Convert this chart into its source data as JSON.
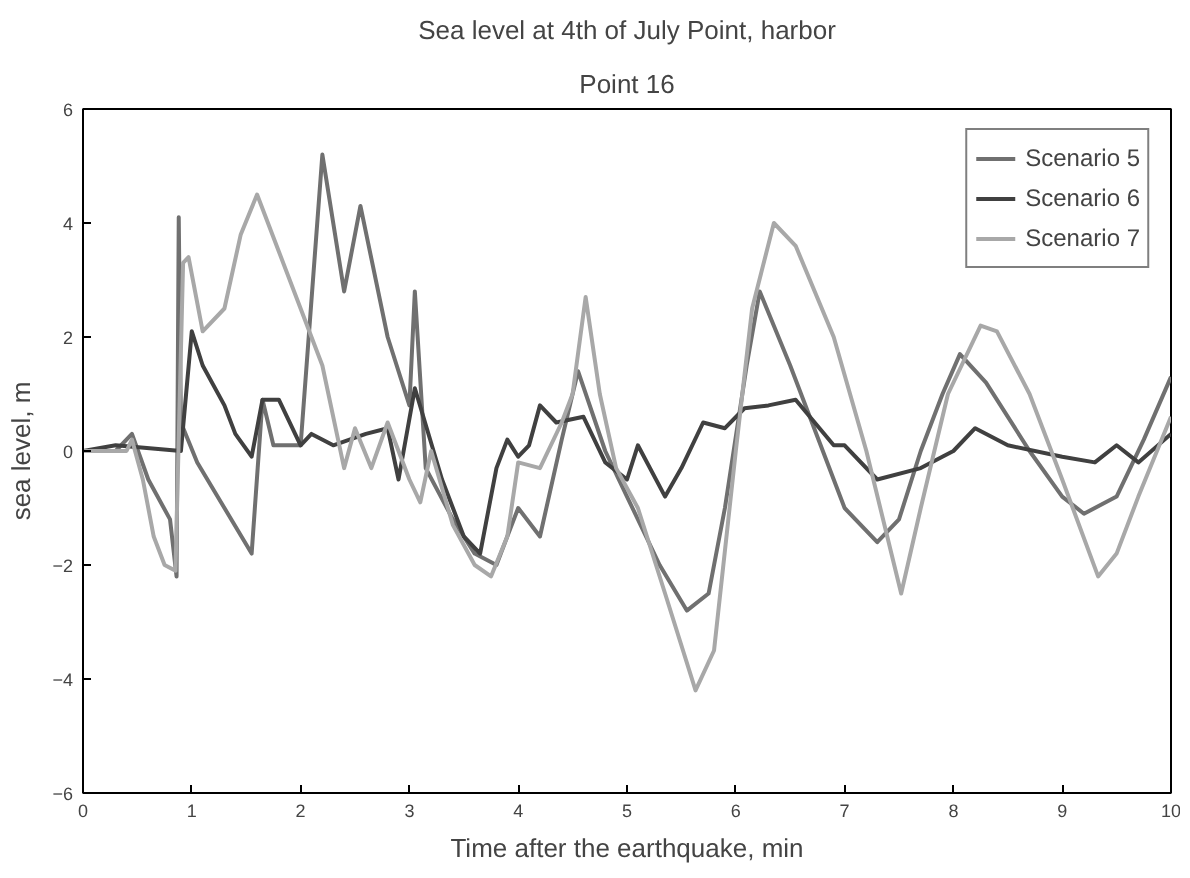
{
  "chart_data": {
    "type": "line",
    "title": "Sea level at 4th of July Point, harbor",
    "subtitle": "Point 16",
    "xlabel": "Time after the earthquake, min",
    "ylabel": "sea level, m",
    "xlim": [
      0,
      10
    ],
    "ylim": [
      -6,
      6
    ],
    "xticks": [
      0,
      1,
      2,
      3,
      4,
      5,
      6,
      7,
      8,
      9,
      10
    ],
    "yticks": [
      -6,
      -4,
      -2,
      0,
      2,
      4,
      6
    ],
    "legend": "top right",
    "grid": false,
    "series": [
      {
        "name": "Scenario 5",
        "color": "#707070",
        "x": [
          0,
          0.3,
          0.45,
          0.6,
          0.8,
          0.86,
          0.88,
          0.9,
          1.05,
          1.3,
          1.55,
          1.65,
          1.75,
          2.0,
          2.2,
          2.4,
          2.55,
          2.8,
          3.0,
          3.05,
          3.15,
          3.4,
          3.6,
          3.8,
          4.0,
          4.2,
          4.4,
          4.55,
          4.8,
          5.0,
          5.3,
          5.55,
          5.75,
          5.9,
          6.1,
          6.22,
          6.5,
          6.8,
          7.0,
          7.3,
          7.5,
          7.7,
          7.9,
          8.06,
          8.3,
          8.7,
          9.0,
          9.2,
          9.5,
          9.75,
          10
        ],
        "values": [
          0,
          0,
          0.3,
          -0.5,
          -1.2,
          -2.2,
          4.1,
          0.5,
          -0.2,
          -1,
          -1.8,
          0.9,
          0.1,
          0.1,
          5.2,
          2.8,
          4.3,
          2,
          0.8,
          2.8,
          -0.3,
          -1.2,
          -1.8,
          -2,
          -1,
          -1.5,
          0.2,
          1.4,
          0,
          -0.8,
          -2,
          -2.8,
          -2.5,
          -1,
          1.5,
          2.8,
          1.5,
          0,
          -1,
          -1.6,
          -1.2,
          0,
          1,
          1.7,
          1.2,
          0,
          -0.8,
          -1.1,
          -0.8,
          0.2,
          1.3
        ]
      },
      {
        "name": "Scenario 6",
        "color": "#404040",
        "x": [
          0,
          0.3,
          0.9,
          1.0,
          1.1,
          1.3,
          1.4,
          1.55,
          1.65,
          1.8,
          2.0,
          2.1,
          2.3,
          2.6,
          2.8,
          2.9,
          3.05,
          3.3,
          3.5,
          3.65,
          3.8,
          3.9,
          4.0,
          4.1,
          4.2,
          4.35,
          4.6,
          4.8,
          5.0,
          5.1,
          5.35,
          5.5,
          5.7,
          5.9,
          6.08,
          6.3,
          6.55,
          6.9,
          7.0,
          7.3,
          7.7,
          8.0,
          8.2,
          8.5,
          9.0,
          9.3,
          9.5,
          9.7,
          10
        ],
        "values": [
          0,
          0.1,
          0,
          2.1,
          1.5,
          0.8,
          0.3,
          -0.1,
          0.9,
          0.9,
          0.1,
          0.3,
          0.1,
          0.3,
          0.4,
          -0.5,
          1.1,
          -0.5,
          -1.5,
          -1.8,
          -0.3,
          0.2,
          -0.1,
          0.1,
          0.8,
          0.5,
          0.6,
          -0.2,
          -0.5,
          0.1,
          -0.8,
          -0.3,
          0.5,
          0.4,
          0.75,
          0.8,
          0.9,
          0.1,
          0.1,
          -0.5,
          -0.3,
          0,
          0.4,
          0.1,
          -0.1,
          -0.2,
          0.1,
          -0.2,
          0.3
        ]
      },
      {
        "name": "Scenario 7",
        "color": "#a8a8a8",
        "x": [
          0,
          0.4,
          0.45,
          0.55,
          0.65,
          0.75,
          0.85,
          0.92,
          0.97,
          1.1,
          1.3,
          1.45,
          1.6,
          1.8,
          2.0,
          2.2,
          2.4,
          2.5,
          2.65,
          2.8,
          3.0,
          3.1,
          3.2,
          3.4,
          3.6,
          3.75,
          3.9,
          4.0,
          4.2,
          4.4,
          4.5,
          4.62,
          4.75,
          4.9,
          5.1,
          5.35,
          5.63,
          5.8,
          6.0,
          6.15,
          6.35,
          6.55,
          6.9,
          7.2,
          7.52,
          7.7,
          7.95,
          8.25,
          8.4,
          8.7,
          9.0,
          9.33,
          9.5,
          9.7,
          10
        ],
        "values": [
          0,
          0,
          0.2,
          -0.5,
          -1.5,
          -2,
          -2.1,
          3.3,
          3.4,
          2.1,
          2.5,
          3.8,
          4.5,
          3.5,
          2.5,
          1.5,
          -0.3,
          0.4,
          -0.3,
          0.5,
          -0.5,
          -0.9,
          0,
          -1.3,
          -2,
          -2.2,
          -1.5,
          -0.2,
          -0.3,
          0.5,
          1,
          2.7,
          1,
          -0.3,
          -1,
          -2.5,
          -4.2,
          -3.5,
          0,
          2.5,
          4,
          3.6,
          2,
          0,
          -2.5,
          -1,
          1,
          2.2,
          2.1,
          1,
          -0.5,
          -2.2,
          -1.8,
          -0.8,
          0.6
        ]
      }
    ]
  }
}
